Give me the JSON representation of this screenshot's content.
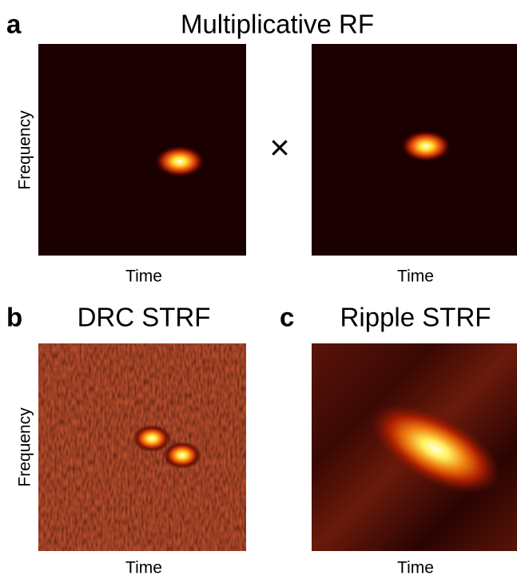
{
  "panel_a": {
    "letter": "a",
    "title": "Multiplicative RF",
    "y_label": "Frequency",
    "operator": "×",
    "x_label_left": "Time",
    "x_label_right": "Time"
  },
  "panel_b": {
    "letter": "b",
    "title": "DRC STRF",
    "y_label": "Frequency",
    "x_label": "Time"
  },
  "panel_c": {
    "letter": "c",
    "title": "Ripple STRF",
    "x_label": "Time"
  }
}
